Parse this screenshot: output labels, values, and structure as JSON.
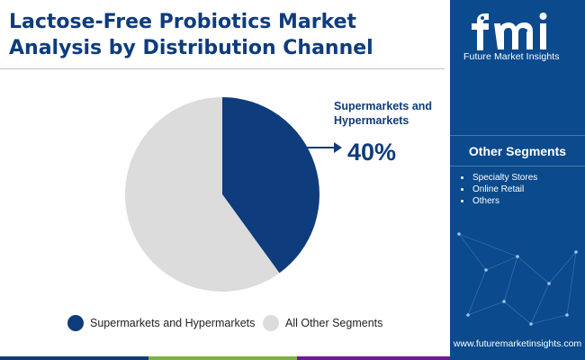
{
  "title_lines": [
    "Lactose-Free Probiotics Market",
    "Analysis by Distribution Channel"
  ],
  "chart_data": {
    "type": "pie",
    "slices": [
      {
        "label": "Supermarkets and Hypermarkets",
        "value": 40,
        "color": "#0e3c7c"
      },
      {
        "label": "All Other Segments",
        "value": 60,
        "color": "#dcdcdc"
      }
    ],
    "callout": {
      "label": "Supermarkets and Hypermarkets",
      "value_text": "40%"
    },
    "legend": [
      "Supermarkets and Hypermarkets",
      "All Other Segments"
    ]
  },
  "side_panel": {
    "logo_text": "fmi",
    "logo_subtitle": "Future Market Insights",
    "other_segments_title": "Other Segments",
    "other_segments": [
      "Specialty Stores",
      "Online Retail",
      "Others"
    ],
    "website": "www.futuremarketinsights.com"
  },
  "colors": {
    "title": "#0e3c7c",
    "primary_slice": "#0e3c7c",
    "secondary_slice": "#dcdcdc",
    "panel_bg": "#0b4a8c",
    "bottom_bar": [
      "#0e3c7c",
      "#7cb342",
      "#e65100",
      "#6a1b9a"
    ]
  }
}
